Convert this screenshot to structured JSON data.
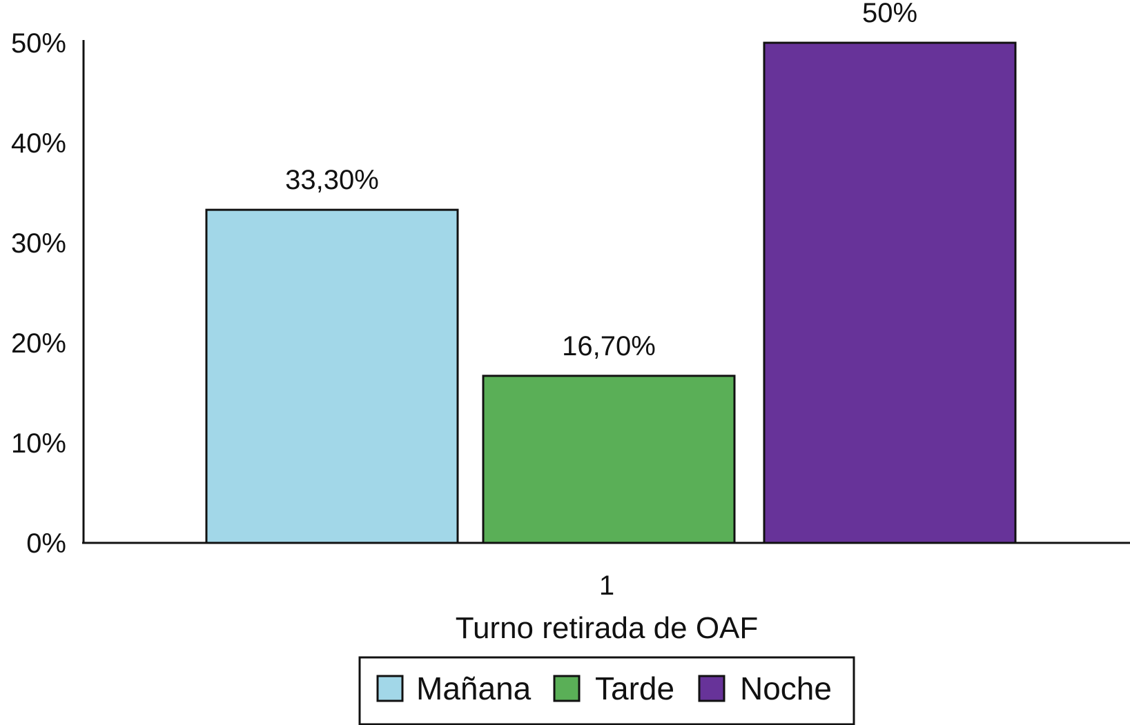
{
  "chart_data": {
    "type": "bar",
    "categories": [
      "1"
    ],
    "series": [
      {
        "name": "Mañana",
        "values": [
          33.3
        ],
        "label": "33,30%",
        "color": "#a2d7e8"
      },
      {
        "name": "Tarde",
        "values": [
          16.7
        ],
        "label": "16,70%",
        "color": "#5aaf57"
      },
      {
        "name": "Noche",
        "values": [
          50
        ],
        "label": "50%",
        "color": "#673399"
      }
    ],
    "xlabel": "Turno retirada de OAF",
    "ylabel": "",
    "ylim": [
      0,
      50
    ],
    "yticks": [
      {
        "value": 0,
        "label": "0%"
      },
      {
        "value": 10,
        "label": "10%"
      },
      {
        "value": 20,
        "label": "20%"
      },
      {
        "value": 30,
        "label": "30%"
      },
      {
        "value": 40,
        "label": "40%"
      },
      {
        "value": 50,
        "label": "50%"
      }
    ],
    "grid": false,
    "legend_position": "bottom-center"
  }
}
